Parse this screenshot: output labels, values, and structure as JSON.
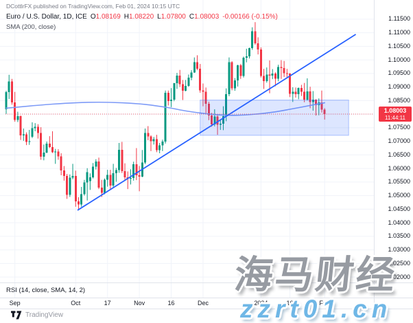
{
  "header": {
    "publish_info": "DCottlrFX published on TradingView.com, Feb 01, 2024 10:15 UTC",
    "symbol_title": "Euro / U.S. Dollar, 1D, ICE",
    "ohlc": [
      {
        "label": "O",
        "value": "1.08169"
      },
      {
        "label": "H",
        "value": "1.08220"
      },
      {
        "label": "L",
        "value": "1.07800"
      },
      {
        "label": "C",
        "value": "1.08003"
      }
    ],
    "change": "-0.00166 (-0.15%)",
    "sma_legend": "SMA (200, close)"
  },
  "rsi_legend": "RSI (14, close, SMA, 14, 2)",
  "price_label": {
    "price": "1.08003",
    "countdown": "11:44:11"
  },
  "price_axis": {
    "ticks": [
      "1.11500",
      "1.11000",
      "1.10500",
      "1.10000",
      "1.09500",
      "1.09000",
      "1.08500",
      "1.08000",
      "1.07500",
      "1.07000",
      "1.06500",
      "1.06000",
      "1.05500",
      "1.05000",
      "1.04500",
      "1.04000",
      "1.03500",
      "1.03000",
      "1.02500",
      "1.02000"
    ]
  },
  "time_axis": {
    "ticks": [
      {
        "label": "Sep",
        "idx": 3
      },
      {
        "label": "Oct",
        "idx": 24
      },
      {
        "label": "17",
        "idx": 35
      },
      {
        "label": "Nov",
        "idx": 46
      },
      {
        "label": "16",
        "idx": 57
      },
      {
        "label": "Dec",
        "idx": 68
      },
      {
        "label": "2024",
        "idx": 88
      },
      {
        "label": "16",
        "idx": 98
      },
      {
        "label": "Feb",
        "idx": 110
      }
    ]
  },
  "attribution": {
    "brand": "TradingView"
  },
  "watermarks": {
    "cjk": "海马财经",
    "url": "zzrt01.cn"
  },
  "icons": {
    "event_marker": "⚡",
    "tv_logo": "tradingview-mark"
  },
  "colors": {
    "up": "#089981",
    "down": "#F23645",
    "grid": "#F0F3FA",
    "separator": "#E0E3EB",
    "sma": "#7E9BF7",
    "trendline": "#2962FF",
    "zone_fill": "rgba(41,98,255,0.16)",
    "zone_stroke": "rgba(41,98,255,0.35)",
    "price_line": "#F23645",
    "axis_text": "#131722"
  },
  "chart_data": {
    "type": "candlestick",
    "symbol": "EURUSD",
    "timeframe": "1D",
    "ylim": [
      1.018,
      1.122
    ],
    "grid": true,
    "current_price": 1.08003,
    "candles": [
      [
        "08-29",
        1.0818,
        1.0886,
        1.0801,
        1.0881
      ],
      [
        "08-30",
        1.0881,
        1.0945,
        1.0856,
        1.0921
      ],
      [
        "08-31",
        1.0921,
        1.093,
        1.0835,
        1.0843
      ],
      [
        "09-01",
        1.0843,
        1.0882,
        1.0772,
        1.0779
      ],
      [
        "09-04",
        1.0779,
        1.0809,
        1.0771,
        1.0793
      ],
      [
        "09-05",
        1.0793,
        1.0795,
        1.0705,
        1.0722
      ],
      [
        "09-06",
        1.0722,
        1.0747,
        1.0702,
        1.0726
      ],
      [
        "09-07",
        1.0726,
        1.0733,
        1.0686,
        1.0698
      ],
      [
        "09-08",
        1.0698,
        1.0742,
        1.0687,
        1.07
      ],
      [
        "09-11",
        1.0717,
        1.077,
        1.0712,
        1.0748
      ],
      [
        "09-12",
        1.0748,
        1.0767,
        1.0737,
        1.0754
      ],
      [
        "09-13",
        1.0754,
        1.0763,
        1.071,
        1.0731
      ],
      [
        "09-14",
        1.0731,
        1.0752,
        1.0632,
        1.0643
      ],
      [
        "09-15",
        1.0643,
        1.0688,
        1.063,
        1.0658
      ],
      [
        "09-18",
        1.0658,
        1.0699,
        1.0656,
        1.0692
      ],
      [
        "09-19",
        1.0692,
        1.0719,
        1.0675,
        1.0679
      ],
      [
        "09-20",
        1.0679,
        1.0737,
        1.0657,
        1.066
      ],
      [
        "09-21",
        1.066,
        1.0672,
        1.0617,
        1.0662
      ],
      [
        "09-22",
        1.0662,
        1.0671,
        1.0632,
        1.0645
      ],
      [
        "09-25",
        1.0645,
        1.0656,
        1.0575,
        1.0593
      ],
      [
        "09-26",
        1.0593,
        1.0609,
        1.0555,
        1.0572
      ],
      [
        "09-27",
        1.0572,
        1.058,
        1.0488,
        1.0503
      ],
      [
        "09-28",
        1.0503,
        1.0578,
        1.0495,
        1.0566
      ],
      [
        "09-29",
        1.0566,
        1.0617,
        1.056,
        1.0573
      ],
      [
        "10-02",
        1.0573,
        1.0592,
        1.0459,
        1.0479
      ],
      [
        "10-03",
        1.0479,
        1.0494,
        1.0448,
        1.0467
      ],
      [
        "10-04",
        1.0467,
        1.0532,
        1.0459,
        1.0505
      ],
      [
        "10-05",
        1.0505,
        1.0558,
        1.05,
        1.0549
      ],
      [
        "10-06",
        1.0549,
        1.0601,
        1.0482,
        1.0586
      ],
      [
        "10-09",
        1.0554,
        1.0582,
        1.0521,
        1.0567
      ],
      [
        "10-10",
        1.0567,
        1.062,
        1.0563,
        1.0606
      ],
      [
        "10-11",
        1.0606,
        1.0634,
        1.0596,
        1.0625
      ],
      [
        "10-12",
        1.0625,
        1.064,
        1.0524,
        1.0529
      ],
      [
        "10-13",
        1.0529,
        1.0558,
        1.0495,
        1.051
      ],
      [
        "10-16",
        1.051,
        1.0563,
        1.0505,
        1.0559
      ],
      [
        "10-17",
        1.0559,
        1.0595,
        1.0533,
        1.0576
      ],
      [
        "10-18",
        1.0576,
        1.0595,
        1.0521,
        1.0537
      ],
      [
        "10-19",
        1.0537,
        1.0617,
        1.0527,
        1.0582
      ],
      [
        "10-20",
        1.0582,
        1.0602,
        1.0551,
        1.0594
      ],
      [
        "10-23",
        1.0594,
        1.0694,
        1.0584,
        1.0669
      ],
      [
        "10-24",
        1.0669,
        1.0698,
        1.0583,
        1.059
      ],
      [
        "10-25",
        1.059,
        1.0619,
        1.0557,
        1.0567
      ],
      [
        "10-26",
        1.0567,
        1.0589,
        1.0524,
        1.0562
      ],
      [
        "10-27",
        1.0562,
        1.0597,
        1.0541,
        1.0565
      ],
      [
        "10-30",
        1.0565,
        1.0625,
        1.0555,
        1.0615
      ],
      [
        "10-31",
        1.0615,
        1.0675,
        1.0557,
        1.0575
      ],
      [
        "11-01",
        1.0575,
        1.0609,
        1.0516,
        1.057
      ],
      [
        "11-02",
        1.057,
        1.0668,
        1.0568,
        1.0622
      ],
      [
        "11-03",
        1.0622,
        1.0747,
        1.0616,
        1.0731
      ],
      [
        "11-06",
        1.0731,
        1.0756,
        1.0704,
        1.0718
      ],
      [
        "11-07",
        1.0718,
        1.0722,
        1.0664,
        1.07
      ],
      [
        "11-08",
        1.07,
        1.0716,
        1.0688,
        1.0708
      ],
      [
        "11-09",
        1.0708,
        1.0724,
        1.066,
        1.0667
      ],
      [
        "11-10",
        1.0667,
        1.0694,
        1.0656,
        1.0685
      ],
      [
        "11-13",
        1.0685,
        1.0706,
        1.0664,
        1.0699
      ],
      [
        "11-14",
        1.0699,
        1.0887,
        1.0692,
        1.0879
      ],
      [
        "11-15",
        1.0879,
        1.0887,
        1.0832,
        1.0848
      ],
      [
        "11-16",
        1.0848,
        1.0896,
        1.0826,
        1.0853
      ],
      [
        "11-17",
        1.0853,
        1.0915,
        1.0848,
        1.0914
      ],
      [
        "11-20",
        1.0914,
        1.0952,
        1.0893,
        1.0942
      ],
      [
        "11-21",
        1.0942,
        1.0963,
        1.09,
        1.091
      ],
      [
        "11-22",
        1.091,
        1.0926,
        1.0852,
        1.0886
      ],
      [
        "11-23",
        1.0886,
        1.0926,
        1.0884,
        1.0904
      ],
      [
        "11-24",
        1.0904,
        1.0946,
        1.0901,
        1.0935
      ],
      [
        "11-27",
        1.0935,
        1.0962,
        1.0925,
        1.0954
      ],
      [
        "11-28",
        1.0954,
        1.1009,
        1.0952,
        1.0992
      ],
      [
        "11-29",
        1.0992,
        1.1017,
        1.0962,
        1.0968
      ],
      [
        "11-30",
        1.0968,
        1.0985,
        1.0879,
        1.0888
      ],
      [
        "12-01",
        1.0888,
        1.0913,
        1.0829,
        1.0882
      ],
      [
        "12-04",
        1.0882,
        1.0898,
        1.0804,
        1.0838
      ],
      [
        "12-05",
        1.0838,
        1.0846,
        1.0778,
        1.0795
      ],
      [
        "12-06",
        1.0795,
        1.0805,
        1.0754,
        1.0762
      ],
      [
        "12-07",
        1.0762,
        1.0818,
        1.0755,
        1.0792
      ],
      [
        "12-08",
        1.0792,
        1.08,
        1.0724,
        1.0761
      ],
      [
        "12-11",
        1.0761,
        1.0779,
        1.0742,
        1.0765
      ],
      [
        "12-12",
        1.0765,
        1.0829,
        1.0741,
        1.0793
      ],
      [
        "12-13",
        1.0793,
        1.0895,
        1.0774,
        1.0874
      ],
      [
        "12-14",
        1.0874,
        1.1009,
        1.0866,
        1.0992
      ],
      [
        "12-15",
        1.0992,
        1.0995,
        1.0888,
        1.0895
      ],
      [
        "12-18",
        1.0895,
        1.0933,
        1.0886,
        1.0924
      ],
      [
        "12-19",
        1.0924,
        1.0982,
        1.0902,
        1.098
      ],
      [
        "12-20",
        1.098,
        1.0985,
        1.093,
        1.0941
      ],
      [
        "12-21",
        1.0941,
        1.1012,
        1.0935,
        1.1008
      ],
      [
        "12-22",
        1.1008,
        1.1041,
        1.0991,
        1.1013
      ],
      [
        "12-26",
        1.1013,
        1.1045,
        1.1005,
        1.1043
      ],
      [
        "12-27",
        1.1043,
        1.112,
        1.1037,
        1.1105
      ],
      [
        "12-28",
        1.1105,
        1.1139,
        1.1056,
        1.1061
      ],
      [
        "12-29",
        1.1061,
        1.1083,
        1.102,
        1.1038
      ],
      [
        "01-02",
        1.1038,
        1.1046,
        1.0935,
        1.0941
      ],
      [
        "01-03",
        1.0941,
        1.0967,
        1.0893,
        1.0922
      ],
      [
        "01-04",
        1.0922,
        1.0972,
        1.0916,
        1.0946
      ],
      [
        "01-05",
        1.0946,
        1.0998,
        1.0877,
        1.0942
      ],
      [
        "01-08",
        1.0942,
        1.0966,
        1.0929,
        1.095
      ],
      [
        "01-09",
        1.095,
        1.0954,
        1.0903,
        1.0931
      ],
      [
        "01-10",
        1.0931,
        1.0982,
        1.0921,
        1.0974
      ],
      [
        "01-11",
        1.0974,
        1.0999,
        1.093,
        1.097
      ],
      [
        "01-12",
        1.097,
        1.0996,
        1.0937,
        1.0951
      ],
      [
        "01-15",
        1.0951,
        1.0967,
        1.0935,
        1.095
      ],
      [
        "01-16",
        1.095,
        1.0951,
        1.0863,
        1.0875
      ],
      [
        "01-17",
        1.0875,
        1.0899,
        1.0845,
        1.0882
      ],
      [
        "01-18",
        1.0882,
        1.0898,
        1.0861,
        1.0874
      ],
      [
        "01-19",
        1.0874,
        1.0898,
        1.0855,
        1.0897
      ],
      [
        "01-22",
        1.0897,
        1.0908,
        1.0867,
        1.0882
      ],
      [
        "01-23",
        1.0882,
        1.0915,
        1.0844,
        1.0853
      ],
      [
        "01-24",
        1.0853,
        1.0932,
        1.085,
        1.0884
      ],
      [
        "01-25",
        1.0884,
        1.0901,
        1.0822,
        1.0845
      ],
      [
        "01-26",
        1.0845,
        1.0885,
        1.0813,
        1.0854
      ],
      [
        "01-29",
        1.0854,
        1.0855,
        1.0795,
        1.0833
      ],
      [
        "01-30",
        1.0833,
        1.0858,
        1.0796,
        1.0843
      ],
      [
        "01-31",
        1.0843,
        1.0887,
        1.0806,
        1.0817
      ],
      [
        "02-01",
        1.0817,
        1.0822,
        1.078,
        1.08
      ]
    ],
    "sma_200": {
      "points": [
        [
          0,
          1.0822
        ],
        [
          8,
          1.083
        ],
        [
          16,
          1.0837
        ],
        [
          24,
          1.0842
        ],
        [
          32,
          1.0844
        ],
        [
          40,
          1.0842
        ],
        [
          48,
          1.0836
        ],
        [
          56,
          1.0824
        ],
        [
          62,
          1.0812
        ],
        [
          68,
          1.0803
        ],
        [
          74,
          1.0797
        ],
        [
          80,
          1.0796
        ],
        [
          86,
          1.08
        ],
        [
          92,
          1.0807
        ],
        [
          98,
          1.0818
        ],
        [
          104,
          1.083
        ],
        [
          110,
          1.0842
        ]
      ]
    },
    "trendline": {
      "from": {
        "idx": 24.8,
        "price": 1.0447
      },
      "to": {
        "idx": 120.6,
        "price": 1.1093
      }
    },
    "support_zone": {
      "idx_from": 67,
      "idx_to": 118.3,
      "price_top": 1.0852,
      "price_bottom": 1.0722
    }
  }
}
